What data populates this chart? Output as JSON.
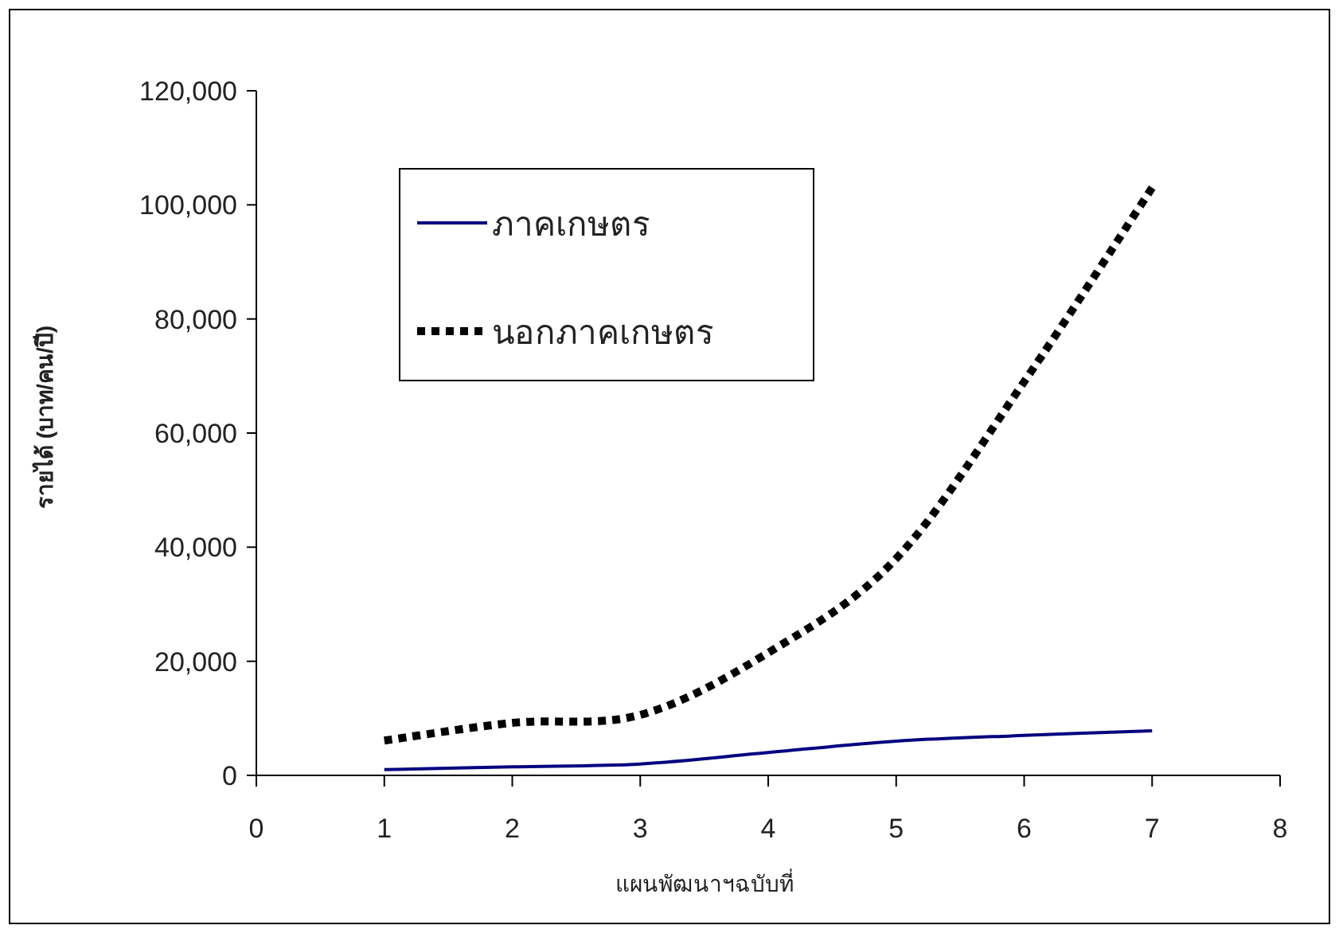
{
  "chart_data": {
    "type": "line",
    "xlabel": "แผนพัฒนาฯฉบับที่",
    "ylabel": "รายได้ (บาท/คน/ปี)",
    "x": [
      1,
      2,
      3,
      4,
      5,
      6,
      7
    ],
    "series": [
      {
        "name": "ภาคเกษตร",
        "color": "#000080",
        "line_style": "solid",
        "values": [
          1000,
          1500,
          2000,
          4000,
          6000,
          7000,
          7800
        ]
      },
      {
        "name": "นอกภาคเกษตร",
        "color": "#000000",
        "line_style": "dotted",
        "values": [
          6100,
          9200,
          10600,
          21500,
          38000,
          69000,
          103000
        ]
      }
    ],
    "xlim": [
      0,
      8
    ],
    "xticks": [
      0,
      1,
      2,
      3,
      4,
      5,
      6,
      7,
      8
    ],
    "ylim": [
      0,
      120000
    ],
    "yticks": [
      {
        "value": 0,
        "label": "0"
      },
      {
        "value": 20000,
        "label": "20,000"
      },
      {
        "value": 40000,
        "label": "40,000"
      },
      {
        "value": 60000,
        "label": "60,000"
      },
      {
        "value": 80000,
        "label": "80,000"
      },
      {
        "value": 100000,
        "label": "100,000"
      },
      {
        "value": 120000,
        "label": "120,000"
      }
    ],
    "grid": false,
    "legend": "top left"
  }
}
